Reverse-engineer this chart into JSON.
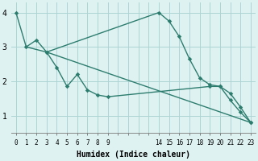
{
  "bg_color": "#dff2f2",
  "line_color": "#2d7d6e",
  "grid_color": "#aed4d4",
  "xlabel": "Humidex (Indice chaleur)",
  "ylim": [
    0.5,
    4.3
  ],
  "xlim": [
    -0.5,
    23.5
  ],
  "yticks": [
    1,
    2,
    3,
    4
  ],
  "xtick_labels": [
    "0",
    "1",
    "2",
    "3",
    "4",
    "5",
    "6",
    "7",
    "8",
    "9",
    "14",
    "15",
    "16",
    "17",
    "18",
    "19",
    "20",
    "21",
    "22",
    "23"
  ],
  "line1_x": [
    0,
    1,
    2,
    3,
    14,
    15,
    16,
    17,
    18,
    19,
    20,
    21,
    22,
    23
  ],
  "line1_y": [
    4.0,
    3.0,
    3.2,
    2.85,
    4.0,
    3.75,
    3.3,
    2.65,
    2.1,
    1.9,
    1.85,
    1.65,
    1.25,
    0.8
  ],
  "line2_x": [
    1,
    3,
    23
  ],
  "line2_y": [
    3.0,
    2.85,
    0.8
  ],
  "line3_x": [
    3,
    4,
    5,
    6,
    7,
    8,
    9,
    19,
    20,
    21,
    22,
    23
  ],
  "line3_y": [
    2.85,
    2.4,
    1.85,
    2.2,
    1.75,
    1.6,
    1.55,
    1.85,
    1.85,
    1.45,
    1.1,
    0.8
  ]
}
